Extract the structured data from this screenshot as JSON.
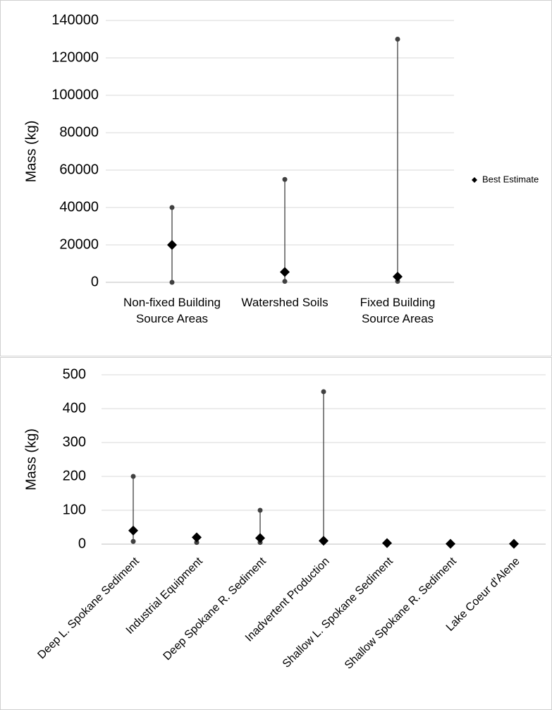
{
  "chart_data": [
    {
      "type": "range",
      "y_label": "Mass (kg)",
      "categories": [
        "Non-fixed Building Source Areas",
        "Watershed Soils",
        "Fixed Building Source Areas"
      ],
      "series": [
        {
          "name": "Best Estimate",
          "color": "#000000",
          "values": [
            20000,
            5500,
            3000
          ]
        }
      ],
      "low": [
        0,
        500,
        500
      ],
      "high": [
        40000,
        55000,
        130000
      ],
      "range_color": "#404040",
      "ylim": [
        0,
        140000
      ],
      "yticks": [
        0,
        20000,
        40000,
        60000,
        80000,
        100000,
        120000,
        140000
      ],
      "grid": true,
      "legend": "right"
    },
    {
      "type": "range",
      "y_label": "Mass (kg)",
      "categories": [
        "Deep L. Spokane Sediment",
        "Industrial Equipment",
        "Deep Spokane R. Sediment",
        "Inadvertent Production",
        "Shallow L. Spokane Sediment",
        "Shallow Spokane R. Sediment",
        "Lake Coeur d'Alene"
      ],
      "series": [
        {
          "color": "#000000",
          "values": [
            40,
            20,
            18,
            10,
            3,
            1,
            1
          ]
        }
      ],
      "low": [
        8,
        5,
        5,
        10,
        5,
        null,
        null
      ],
      "high": [
        200,
        null,
        100,
        450,
        null,
        null,
        null
      ],
      "range_color": "#404040",
      "ylim": [
        0,
        500
      ],
      "yticks": [
        0,
        100,
        200,
        300,
        400,
        500
      ],
      "grid": true
    }
  ]
}
